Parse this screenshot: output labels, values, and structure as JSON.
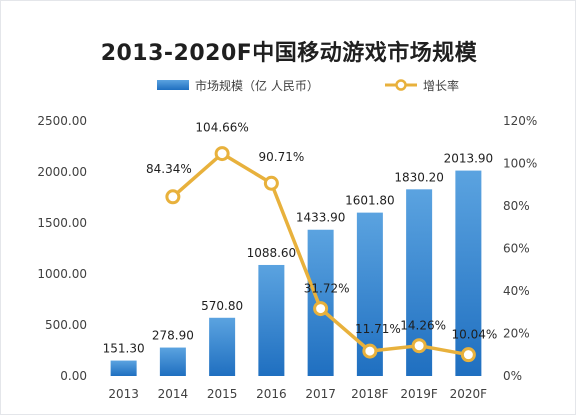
{
  "chart_data": {
    "type": "bar+line",
    "title": "2013-2020F中国移动游戏市场规模",
    "categories": [
      "2013",
      "2014",
      "2015",
      "2016",
      "2017",
      "2018F",
      "2019F",
      "2020F"
    ],
    "series": [
      {
        "name": "市场规模（亿 人民币）",
        "type": "bar",
        "axis": "left",
        "values": [
          151.3,
          278.9,
          570.8,
          1088.6,
          1433.9,
          1601.8,
          1830.2,
          2013.9
        ],
        "labels": [
          "151.30",
          "278.90",
          "570.80",
          "1088.60",
          "1433.90",
          "1601.80",
          "1830.20",
          "2013.90"
        ]
      },
      {
        "name": "增长率",
        "type": "line",
        "axis": "right",
        "values": [
          null,
          84.34,
          104.66,
          90.71,
          31.72,
          11.71,
          14.26,
          10.04
        ],
        "labels": [
          "",
          "84.34%",
          "104.66%",
          "90.71%",
          "31.72%",
          "11.71%",
          "14.26%",
          "10.04%"
        ]
      }
    ],
    "y_left": {
      "min": 0,
      "max": 2500,
      "ticks": [
        "0.00",
        "500.00",
        "1000.00",
        "1500.00",
        "2000.00",
        "2500.00"
      ]
    },
    "y_right": {
      "min": 0,
      "max": 120,
      "ticks": [
        "0%",
        "20%",
        "40%",
        "60%",
        "80%",
        "100%",
        "120%"
      ]
    },
    "legend_position": "top",
    "grid": false,
    "colors": {
      "bar_top": "#5ba3e0",
      "bar_bottom": "#1f6fc0",
      "line": "#e8b13c",
      "marker_fill": "#ffffff"
    }
  }
}
